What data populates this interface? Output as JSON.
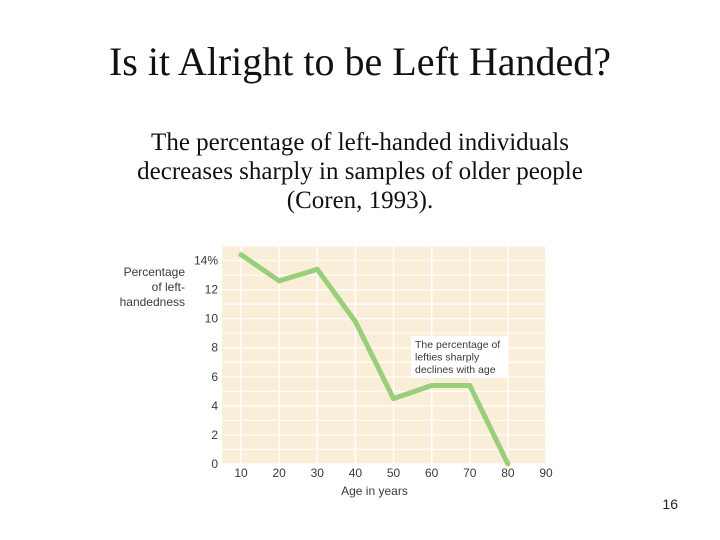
{
  "slide": {
    "title": "Is it Alright to be Left Handed?",
    "subtitle_lines": [
      "The percentage of left-handed individuals",
      "decreases sharply in samples of older people",
      "(Coren, 1993)."
    ],
    "page_number": "16"
  },
  "chart_data": {
    "type": "line",
    "x": [
      10,
      20,
      30,
      40,
      50,
      60,
      70,
      80
    ],
    "series": [
      {
        "values": [
          14.4,
          12.6,
          13.4,
          9.8,
          4.5,
          5.4,
          5.4,
          0
        ]
      }
    ],
    "xlabel": "Age in years",
    "ylabel_lines": [
      "Percentage",
      "of left-",
      "handedness"
    ],
    "xlim": [
      5,
      90
    ],
    "ylim": [
      0,
      15
    ],
    "xticks": [
      10,
      20,
      30,
      40,
      50,
      60,
      70,
      80,
      90
    ],
    "yticks": [
      0,
      2,
      4,
      6,
      8,
      10,
      12,
      14
    ],
    "ytick_labels": [
      "0",
      "2",
      "4",
      "6",
      "8",
      "10",
      "12",
      "14%"
    ],
    "annotation_lines": [
      "The percentage of",
      "lefties sharply",
      "declines with age"
    ],
    "grid": true,
    "colors": {
      "line": "#99cf7a",
      "plot_bg": "#fbeed8",
      "grid": "#ffffff",
      "annotation_bg": "#ffffff"
    }
  }
}
